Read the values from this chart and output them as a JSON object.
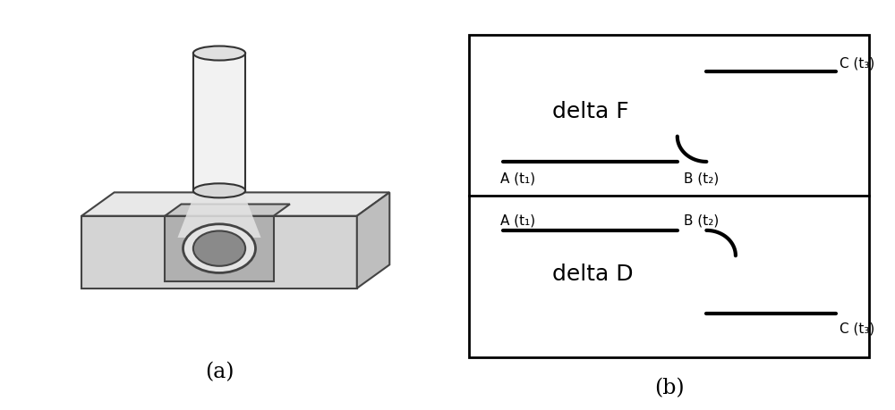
{
  "fig_width": 10.0,
  "fig_height": 4.6,
  "bg_color": "#ffffff",
  "line_color": "#000000",
  "line_width": 3.0,
  "panel_a_label": "(a)",
  "panel_b_label": "(b)",
  "top_plot_label": "delta F",
  "bottom_plot_label": "delta D",
  "point_labels": {
    "A": "A (t₁)",
    "B": "B (t₂)",
    "C": "C (t₃)"
  },
  "box_edge_color": "#444444",
  "cylinder_edge_color": "#333333",
  "annotation_fontsize": 11,
  "label_fontsize": 18,
  "sublabel_fontsize": 17
}
